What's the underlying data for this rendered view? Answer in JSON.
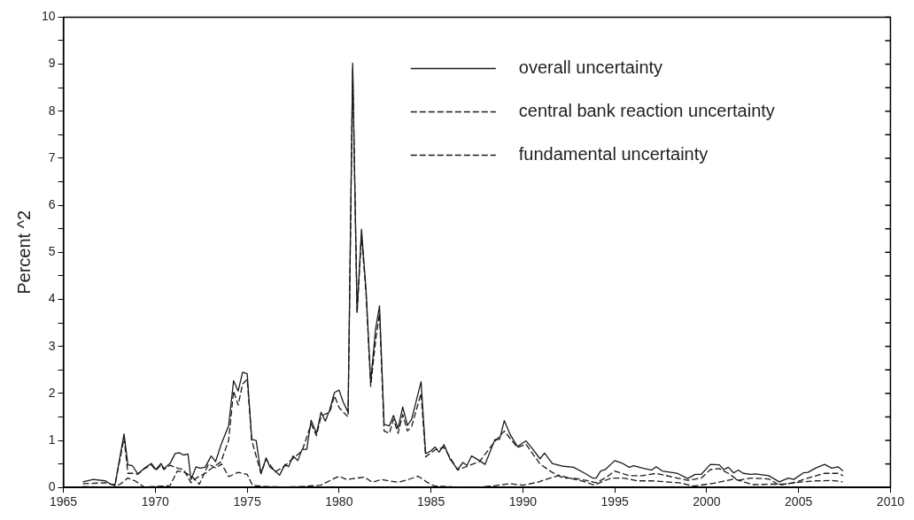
{
  "chart_data": {
    "type": "line",
    "ylabel": "Percent ^2",
    "xlim": [
      1965,
      2010
    ],
    "xticks": [
      1965,
      1970,
      1975,
      1980,
      1985,
      1990,
      1995,
      2000,
      2005,
      2010
    ],
    "ylim": [
      0,
      10
    ],
    "yticks": [
      0,
      {
        "value": 0.5,
        "label": null
      },
      1,
      {
        "value": 1.5,
        "label": null
      },
      2,
      {
        "value": 2.5,
        "label": null
      },
      3,
      {
        "value": 3.5,
        "label": null
      },
      4,
      {
        "value": 4.5,
        "label": null
      },
      5,
      {
        "value": 5.5,
        "label": null
      },
      6,
      {
        "value": 6.5,
        "label": null
      },
      7,
      {
        "value": 7.5,
        "label": null
      },
      8,
      {
        "value": 8.5,
        "label": null
      },
      9,
      {
        "value": 9.5,
        "label": null
      },
      10
    ],
    "grid": false,
    "legend": "top",
    "marker": "none",
    "series": [
      {
        "name": "overall uncertainty",
        "color": "#1a1a1a",
        "line_style": "solid",
        "x": [
          1966.06,
          1966.63,
          1967.29,
          1967.61,
          1967.81,
          1968.3,
          1968.51,
          1968.76,
          1969.05,
          1969.41,
          1969.79,
          1970.03,
          1970.31,
          1970.47,
          1970.8,
          1971.08,
          1971.29,
          1971.54,
          1971.78,
          1971.94,
          1972.22,
          1972.43,
          1972.71,
          1973.04,
          1973.28,
          1973.58,
          1973.99,
          1974.26,
          1974.51,
          1974.75,
          1975.0,
          1975.25,
          1975.49,
          1975.75,
          1976.03,
          1976.24,
          1976.52,
          1976.76,
          1977.06,
          1977.25,
          1977.5,
          1977.75,
          1977.99,
          1978.24,
          1978.48,
          1978.77,
          1979.02,
          1979.25,
          1979.49,
          1979.75,
          1980.0,
          1980.23,
          1980.49,
          1980.74,
          1980.98,
          1981.22,
          1981.47,
          1981.72,
          1981.98,
          1982.2,
          1982.45,
          1982.74,
          1982.96,
          1983.21,
          1983.46,
          1983.72,
          1983.95,
          1984.46,
          1984.71,
          1984.97,
          1985.22,
          1985.44,
          1985.71,
          1986.03,
          1986.45,
          1986.74,
          1986.96,
          1987.21,
          1987.64,
          1987.94,
          1988.48,
          1988.73,
          1988.99,
          1989.32,
          1989.7,
          1990.17,
          1990.51,
          1990.93,
          1991.18,
          1991.6,
          1992.2,
          1992.76,
          1993.42,
          1993.79,
          1993.99,
          1994.23,
          1994.48,
          1995.0,
          1995.38,
          1995.78,
          1996.03,
          1996.52,
          1997.01,
          1997.25,
          1997.58,
          1998.4,
          1998.97,
          1999.38,
          1999.71,
          2000.2,
          2000.69,
          2000.93,
          2001.18,
          2001.47,
          2001.72,
          2001.99,
          2002.4,
          2002.65,
          2003.38,
          2003.95,
          2004.44,
          2004.74,
          2005.26,
          2005.51,
          2005.92,
          2006.41,
          2006.81,
          2007.14,
          2007.42
        ],
        "values": [
          0.12,
          0.17,
          0.14,
          0.06,
          0.06,
          1.14,
          0.48,
          0.46,
          0.29,
          0.41,
          0.51,
          0.38,
          0.51,
          0.4,
          0.51,
          0.72,
          0.74,
          0.69,
          0.71,
          0.17,
          0.44,
          0.41,
          0.43,
          0.67,
          0.55,
          0.91,
          1.31,
          2.27,
          2.05,
          2.45,
          2.42,
          1.02,
          1.0,
          0.29,
          0.63,
          0.43,
          0.35,
          0.26,
          0.49,
          0.44,
          0.67,
          0.57,
          0.81,
          0.81,
          1.43,
          1.15,
          1.6,
          1.41,
          1.65,
          2.02,
          2.07,
          1.81,
          1.6,
          9.02,
          3.74,
          5.49,
          4.18,
          2.24,
          3.35,
          3.86,
          1.34,
          1.31,
          1.53,
          1.25,
          1.71,
          1.32,
          1.45,
          2.25,
          0.72,
          0.77,
          0.86,
          0.75,
          0.91,
          0.61,
          0.38,
          0.53,
          0.47,
          0.67,
          0.57,
          0.49,
          1.02,
          1.02,
          1.42,
          1.12,
          0.87,
          0.99,
          0.83,
          0.61,
          0.73,
          0.51,
          0.45,
          0.43,
          0.29,
          0.2,
          0.2,
          0.35,
          0.38,
          0.57,
          0.52,
          0.43,
          0.46,
          0.41,
          0.37,
          0.44,
          0.35,
          0.3,
          0.19,
          0.28,
          0.28,
          0.49,
          0.48,
          0.38,
          0.43,
          0.31,
          0.37,
          0.3,
          0.28,
          0.29,
          0.25,
          0.12,
          0.2,
          0.17,
          0.31,
          0.32,
          0.41,
          0.49,
          0.41,
          0.44,
          0.35
        ]
      },
      {
        "name": "central bank reaction uncertainty",
        "color": "#1a1a1a",
        "line_style": "dashed",
        "x": [
          1966.06,
          1967.29,
          1967.81,
          1968.3,
          1968.51,
          1968.76,
          1969.05,
          1969.41,
          1969.79,
          1970.03,
          1970.31,
          1970.47,
          1970.8,
          1971.29,
          1971.54,
          1971.94,
          1972.22,
          1972.71,
          1973.04,
          1973.58,
          1973.99,
          1974.26,
          1974.51,
          1974.75,
          1975.0,
          1975.25,
          1975.75,
          1976.03,
          1976.52,
          1977.06,
          1977.5,
          1977.99,
          1978.48,
          1978.77,
          1979.02,
          1979.49,
          1979.75,
          1980.0,
          1980.23,
          1980.49,
          1980.74,
          1980.98,
          1981.22,
          1981.47,
          1981.72,
          1981.98,
          1982.2,
          1982.45,
          1982.74,
          1982.96,
          1983.21,
          1983.46,
          1983.72,
          1983.95,
          1984.46,
          1984.71,
          1985.22,
          1985.71,
          1986.45,
          1986.96,
          1987.64,
          1988.48,
          1988.99,
          1989.7,
          1990.17,
          1990.93,
          1991.6,
          1992.2,
          1992.76,
          1993.42,
          1993.99,
          1994.48,
          1995.0,
          1995.78,
          1996.52,
          1997.25,
          1998.4,
          1998.97,
          1999.71,
          2000.2,
          2000.69,
          2001.18,
          2001.72,
          2002.4,
          2003.38,
          2003.95,
          2004.74,
          2005.51,
          2006.41,
          2007.14,
          2007.42
        ],
        "values": [
          0.08,
          0.1,
          0.05,
          1.05,
          0.3,
          0.3,
          0.28,
          0.4,
          0.48,
          0.36,
          0.48,
          0.38,
          0.47,
          0.4,
          0.38,
          0.1,
          0.2,
          0.3,
          0.4,
          0.55,
          1.0,
          2.05,
          1.75,
          2.2,
          2.3,
          1.0,
          0.3,
          0.6,
          0.33,
          0.46,
          0.62,
          0.78,
          1.35,
          1.1,
          1.52,
          1.6,
          1.95,
          1.7,
          1.6,
          1.5,
          8.9,
          3.7,
          5.35,
          4.1,
          2.15,
          3.1,
          3.7,
          1.2,
          1.15,
          1.45,
          1.15,
          1.55,
          1.2,
          1.3,
          2.0,
          0.65,
          0.8,
          0.85,
          0.37,
          0.45,
          0.55,
          0.98,
          1.2,
          0.85,
          0.92,
          0.5,
          0.32,
          0.2,
          0.2,
          0.15,
          0.1,
          0.2,
          0.35,
          0.25,
          0.25,
          0.3,
          0.2,
          0.15,
          0.2,
          0.38,
          0.4,
          0.3,
          0.15,
          0.2,
          0.18,
          0.05,
          0.1,
          0.2,
          0.3,
          0.3,
          0.25
        ]
      },
      {
        "name": "fundamental uncertainty",
        "color": "#1a1a1a",
        "line_style": "dashed",
        "x": [
          1966.06,
          1967.6,
          1968.1,
          1968.5,
          1968.9,
          1969.4,
          1970.0,
          1970.8,
          1971.2,
          1971.6,
          1972.0,
          1972.4,
          1972.9,
          1973.3,
          1973.6,
          1974.0,
          1974.5,
          1975.0,
          1975.3,
          1976.0,
          1977.0,
          1978.0,
          1979.0,
          1980.0,
          1980.4,
          1981.4,
          1981.8,
          1982.3,
          1982.7,
          1983.2,
          1983.7,
          1984.3,
          1984.8,
          1985.2,
          1986.5,
          1987.7,
          1988.5,
          1989.3,
          1990.0,
          1990.8,
          1991.4,
          1992.0,
          1992.6,
          1993.3,
          1993.8,
          1994.0,
          1994.8,
          1995.5,
          1996.2,
          1997.0,
          1997.8,
          1998.5,
          1999.3,
          2000.4,
          2001.5,
          2002.5,
          2003.5,
          2004.2,
          2005.2,
          2006.0,
          2006.8,
          2007.4
        ],
        "values": [
          0.02,
          0.0,
          0.07,
          0.2,
          0.14,
          0.01,
          0.02,
          0.04,
          0.35,
          0.32,
          0.23,
          0.07,
          0.5,
          0.41,
          0.5,
          0.23,
          0.32,
          0.28,
          0.04,
          0.02,
          0.01,
          0.02,
          0.05,
          0.24,
          0.17,
          0.22,
          0.11,
          0.17,
          0.14,
          0.11,
          0.16,
          0.24,
          0.11,
          0.03,
          0.01,
          0.01,
          0.04,
          0.08,
          0.05,
          0.11,
          0.19,
          0.26,
          0.19,
          0.13,
          0.06,
          0.07,
          0.2,
          0.2,
          0.14,
          0.14,
          0.12,
          0.1,
          0.03,
          0.09,
          0.18,
          0.06,
          0.07,
          0.07,
          0.12,
          0.14,
          0.15,
          0.12
        ]
      }
    ]
  }
}
